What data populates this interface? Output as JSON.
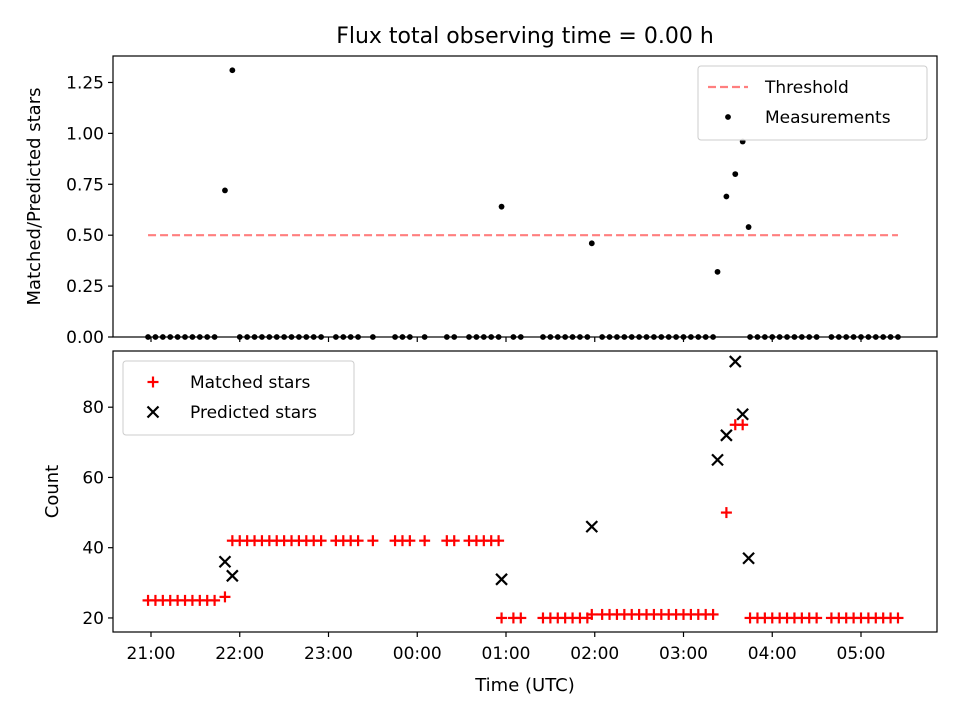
{
  "chart_data": {
    "type": "scatter",
    "title": "Flux total observing time = 0.00 h",
    "xlabel": "Time (UTC)",
    "x_ticks": [
      "21:00",
      "22:00",
      "23:00",
      "00:00",
      "01:00",
      "02:00",
      "03:00",
      "04:00",
      "05:00"
    ],
    "panels": [
      {
        "ylabel": "Matched/Predicted stars",
        "ylim": [
          0,
          1.38
        ],
        "y_ticks": [
          "0.00",
          "0.25",
          "0.50",
          "0.75",
          "1.00",
          "1.25"
        ],
        "legend_position": "top-right",
        "threshold": {
          "name": "Threshold",
          "value": 0.5,
          "x_start": "20:58",
          "x_end": "05:25",
          "color": "#ff7f7f"
        },
        "series": [
          {
            "name": "Measurements",
            "color": "#000000",
            "marker": "dot",
            "points": [
              [
                "20:58",
                0
              ],
              [
                "21:03",
                0
              ],
              [
                "21:08",
                0
              ],
              [
                "21:13",
                0
              ],
              [
                "21:18",
                0
              ],
              [
                "21:23",
                0
              ],
              [
                "21:28",
                0
              ],
              [
                "21:33",
                0
              ],
              [
                "21:38",
                0
              ],
              [
                "21:43",
                0
              ],
              [
                "21:50",
                0.72
              ],
              [
                "21:55",
                1.31
              ],
              [
                "22:00",
                0
              ],
              [
                "22:05",
                0
              ],
              [
                "22:10",
                0
              ],
              [
                "22:15",
                0
              ],
              [
                "22:20",
                0
              ],
              [
                "22:25",
                0
              ],
              [
                "22:30",
                0
              ],
              [
                "22:35",
                0
              ],
              [
                "22:40",
                0
              ],
              [
                "22:45",
                0
              ],
              [
                "22:50",
                0
              ],
              [
                "22:55",
                0
              ],
              [
                "23:05",
                0
              ],
              [
                "23:10",
                0
              ],
              [
                "23:15",
                0
              ],
              [
                "23:20",
                0
              ],
              [
                "23:30",
                0
              ],
              [
                "23:45",
                0
              ],
              [
                "23:50",
                0
              ],
              [
                "23:55",
                0
              ],
              [
                "00:05",
                0
              ],
              [
                "00:20",
                0
              ],
              [
                "00:25",
                0
              ],
              [
                "00:35",
                0
              ],
              [
                "00:40",
                0
              ],
              [
                "00:45",
                0
              ],
              [
                "00:50",
                0
              ],
              [
                "00:55",
                0
              ],
              [
                "00:57",
                0.64
              ],
              [
                "01:05",
                0
              ],
              [
                "01:10",
                0
              ],
              [
                "01:25",
                0
              ],
              [
                "01:30",
                0
              ],
              [
                "01:35",
                0
              ],
              [
                "01:40",
                0
              ],
              [
                "01:45",
                0
              ],
              [
                "01:50",
                0
              ],
              [
                "01:55",
                0
              ],
              [
                "01:58",
                0.46
              ],
              [
                "02:05",
                0
              ],
              [
                "02:10",
                0
              ],
              [
                "02:15",
                0
              ],
              [
                "02:20",
                0
              ],
              [
                "02:25",
                0
              ],
              [
                "02:30",
                0
              ],
              [
                "02:35",
                0
              ],
              [
                "02:40",
                0
              ],
              [
                "02:45",
                0
              ],
              [
                "02:50",
                0
              ],
              [
                "02:55",
                0
              ],
              [
                "03:00",
                0
              ],
              [
                "03:05",
                0
              ],
              [
                "03:10",
                0
              ],
              [
                "03:15",
                0
              ],
              [
                "03:20",
                0
              ],
              [
                "03:23",
                0.32
              ],
              [
                "03:29",
                0.69
              ],
              [
                "03:35",
                0.8
              ],
              [
                "03:40",
                0.96
              ],
              [
                "03:44",
                0.54
              ],
              [
                "03:45",
                0
              ],
              [
                "03:50",
                0
              ],
              [
                "03:55",
                0
              ],
              [
                "04:00",
                0
              ],
              [
                "04:05",
                0
              ],
              [
                "04:10",
                0
              ],
              [
                "04:15",
                0
              ],
              [
                "04:20",
                0
              ],
              [
                "04:25",
                0
              ],
              [
                "04:30",
                0
              ],
              [
                "04:40",
                0
              ],
              [
                "04:45",
                0
              ],
              [
                "04:50",
                0
              ],
              [
                "04:55",
                0
              ],
              [
                "05:00",
                0
              ],
              [
                "05:05",
                0
              ],
              [
                "05:10",
                0
              ],
              [
                "05:15",
                0
              ],
              [
                "05:20",
                0
              ],
              [
                "05:25",
                0
              ]
            ]
          }
        ]
      },
      {
        "ylabel": "Count",
        "ylim": [
          16,
          96
        ],
        "y_ticks": [
          "20",
          "40",
          "60",
          "80"
        ],
        "legend_position": "top-left",
        "series": [
          {
            "name": "Matched stars",
            "color": "#ff0000",
            "marker": "plus",
            "points": [
              [
                "20:58",
                25
              ],
              [
                "21:03",
                25
              ],
              [
                "21:08",
                25
              ],
              [
                "21:13",
                25
              ],
              [
                "21:18",
                25
              ],
              [
                "21:23",
                25
              ],
              [
                "21:28",
                25
              ],
              [
                "21:33",
                25
              ],
              [
                "21:38",
                25
              ],
              [
                "21:43",
                25
              ],
              [
                "21:50",
                26
              ],
              [
                "21:55",
                42
              ],
              [
                "22:00",
                42
              ],
              [
                "22:05",
                42
              ],
              [
                "22:10",
                42
              ],
              [
                "22:15",
                42
              ],
              [
                "22:20",
                42
              ],
              [
                "22:25",
                42
              ],
              [
                "22:30",
                42
              ],
              [
                "22:35",
                42
              ],
              [
                "22:40",
                42
              ],
              [
                "22:45",
                42
              ],
              [
                "22:50",
                42
              ],
              [
                "22:55",
                42
              ],
              [
                "23:05",
                42
              ],
              [
                "23:10",
                42
              ],
              [
                "23:15",
                42
              ],
              [
                "23:20",
                42
              ],
              [
                "23:30",
                42
              ],
              [
                "23:45",
                42
              ],
              [
                "23:50",
                42
              ],
              [
                "23:55",
                42
              ],
              [
                "00:05",
                42
              ],
              [
                "00:20",
                42
              ],
              [
                "00:25",
                42
              ],
              [
                "00:35",
                42
              ],
              [
                "00:40",
                42
              ],
              [
                "00:45",
                42
              ],
              [
                "00:50",
                42
              ],
              [
                "00:55",
                42
              ],
              [
                "00:57",
                20
              ],
              [
                "01:05",
                20
              ],
              [
                "01:10",
                20
              ],
              [
                "01:25",
                20
              ],
              [
                "01:30",
                20
              ],
              [
                "01:35",
                20
              ],
              [
                "01:40",
                20
              ],
              [
                "01:45",
                20
              ],
              [
                "01:50",
                20
              ],
              [
                "01:55",
                20
              ],
              [
                "01:58",
                21
              ],
              [
                "02:05",
                21
              ],
              [
                "02:10",
                21
              ],
              [
                "02:15",
                21
              ],
              [
                "02:20",
                21
              ],
              [
                "02:25",
                21
              ],
              [
                "02:30",
                21
              ],
              [
                "02:35",
                21
              ],
              [
                "02:40",
                21
              ],
              [
                "02:45",
                21
              ],
              [
                "02:50",
                21
              ],
              [
                "02:55",
                21
              ],
              [
                "03:00",
                21
              ],
              [
                "03:05",
                21
              ],
              [
                "03:10",
                21
              ],
              [
                "03:15",
                21
              ],
              [
                "03:20",
                21
              ],
              [
                "03:29",
                50
              ],
              [
                "03:35",
                75
              ],
              [
                "03:40",
                75
              ],
              [
                "03:45",
                20
              ],
              [
                "03:50",
                20
              ],
              [
                "03:55",
                20
              ],
              [
                "04:00",
                20
              ],
              [
                "04:05",
                20
              ],
              [
                "04:10",
                20
              ],
              [
                "04:15",
                20
              ],
              [
                "04:20",
                20
              ],
              [
                "04:25",
                20
              ],
              [
                "04:30",
                20
              ],
              [
                "04:40",
                20
              ],
              [
                "04:45",
                20
              ],
              [
                "04:50",
                20
              ],
              [
                "04:55",
                20
              ],
              [
                "05:00",
                20
              ],
              [
                "05:05",
                20
              ],
              [
                "05:10",
                20
              ],
              [
                "05:15",
                20
              ],
              [
                "05:20",
                20
              ],
              [
                "05:25",
                20
              ]
            ]
          },
          {
            "name": "Predicted stars",
            "color": "#000000",
            "marker": "x",
            "points": [
              [
                "21:50",
                36
              ],
              [
                "21:55",
                32
              ],
              [
                "00:57",
                31
              ],
              [
                "01:58",
                46
              ],
              [
                "03:23",
                65
              ],
              [
                "03:29",
                72
              ],
              [
                "03:35",
                93
              ],
              [
                "03:40",
                78
              ],
              [
                "03:44",
                37
              ]
            ]
          }
        ]
      }
    ]
  }
}
